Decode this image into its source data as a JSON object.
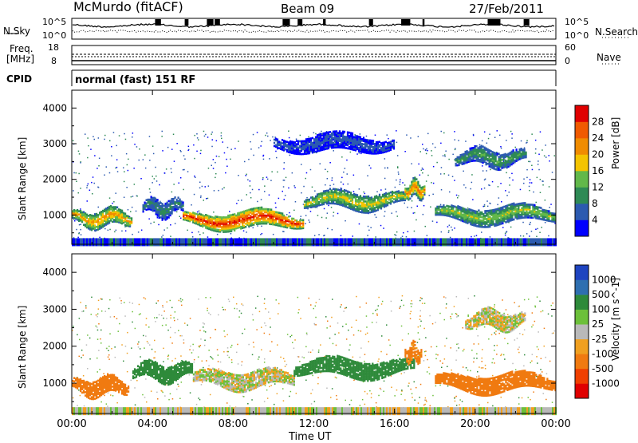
{
  "header": {
    "station": "McMurdo (fitACF)",
    "beam": "Beam 09",
    "date": "27/Feb/2011"
  },
  "noise_panel": {
    "left_label": "N.Sky",
    "right_label": "N.Search",
    "left_ticks": [
      "10^5",
      "10^0"
    ],
    "right_ticks": [
      "10^5",
      "10^0"
    ]
  },
  "freq_panel": {
    "left_label_1": "Freq.",
    "left_label_2": "[MHz]",
    "right_label": "Nave",
    "left_ticks": [
      "18",
      "8"
    ],
    "right_ticks": [
      "60",
      "0"
    ]
  },
  "cpid_panel": {
    "label": "CPID",
    "value": "normal (fast) 151 RF"
  },
  "time_axis": {
    "label": "Time UT",
    "ticks": [
      "00:00",
      "04:00",
      "08:00",
      "12:00",
      "16:00",
      "20:00",
      "00:00"
    ]
  },
  "colors": {
    "power_scale": [
      "#0000ff",
      "#2c5ab0",
      "#2e8a55",
      "#62b84a",
      "#f4c400",
      "#f08c00",
      "#f05a00",
      "#e00000"
    ],
    "velocity_scale": [
      "#1e44c0",
      "#2e6fb0",
      "#2e8a3a",
      "#6cc03a",
      "#b9b9b9",
      "#f0a020",
      "#f07a10",
      "#f04000",
      "#e00000"
    ]
  },
  "chart_data": [
    {
      "type": "heatmap",
      "title": "",
      "xlabel": "Time UT",
      "ylabel": "Slant Range [km]",
      "xlim": [
        "00:00",
        "24:00"
      ],
      "ylim": [
        180,
        4500
      ],
      "y_ticks": [
        1000,
        2000,
        3000,
        4000
      ],
      "colorbar": {
        "label": "Power [dB]",
        "range": [
          0,
          32
        ],
        "ticks": [
          4,
          8,
          12,
          16,
          20,
          24,
          28
        ]
      },
      "features": [
        {
          "t_start": 0.0,
          "t_end": 3.0,
          "range_km": 900,
          "value": 22
        },
        {
          "t_start": 3.5,
          "t_end": 5.5,
          "range_km": 1200,
          "value": 10
        },
        {
          "t_start": 5.5,
          "t_end": 11.5,
          "range_km": 850,
          "value": 30
        },
        {
          "t_start": 11.5,
          "t_end": 16.5,
          "range_km": 1400,
          "value": 18
        },
        {
          "t_start": 16.5,
          "t_end": 17.5,
          "range_km": 1700,
          "value": 24
        },
        {
          "t_start": 18.0,
          "t_end": 24.0,
          "range_km": 1000,
          "value": 16
        },
        {
          "t_start": 19.0,
          "t_end": 22.5,
          "range_km": 2600,
          "value": 12
        },
        {
          "t_start": 10.0,
          "t_end": 16.0,
          "range_km": 3000,
          "value": 6
        }
      ]
    },
    {
      "type": "heatmap",
      "title": "",
      "xlabel": "Time UT",
      "ylabel": "Slant Range [km]",
      "xlim": [
        "00:00",
        "24:00"
      ],
      "ylim": [
        180,
        4500
      ],
      "y_ticks": [
        1000,
        2000,
        3000,
        4000
      ],
      "colorbar": {
        "label": "Velocity [m s^-1]",
        "ticks": [
          1000,
          500,
          100,
          25,
          -25,
          -100,
          -500,
          -1000
        ]
      },
      "features": [
        {
          "t_start": 0.0,
          "t_end": 2.8,
          "range_km": 900,
          "value": -300
        },
        {
          "t_start": 3.0,
          "t_end": 6.0,
          "range_km": 1300,
          "value": 200
        },
        {
          "t_start": 6.0,
          "t_end": 11.0,
          "range_km": 1100,
          "value": 0
        },
        {
          "t_start": 11.0,
          "t_end": 17.0,
          "range_km": 1400,
          "value": 250
        },
        {
          "t_start": 16.5,
          "t_end": 17.3,
          "range_km": 1800,
          "value": -150
        },
        {
          "t_start": 18.0,
          "t_end": 24.0,
          "range_km": 1000,
          "value": -300
        },
        {
          "t_start": 19.5,
          "t_end": 22.5,
          "range_km": 2700,
          "value": 0
        }
      ]
    }
  ]
}
